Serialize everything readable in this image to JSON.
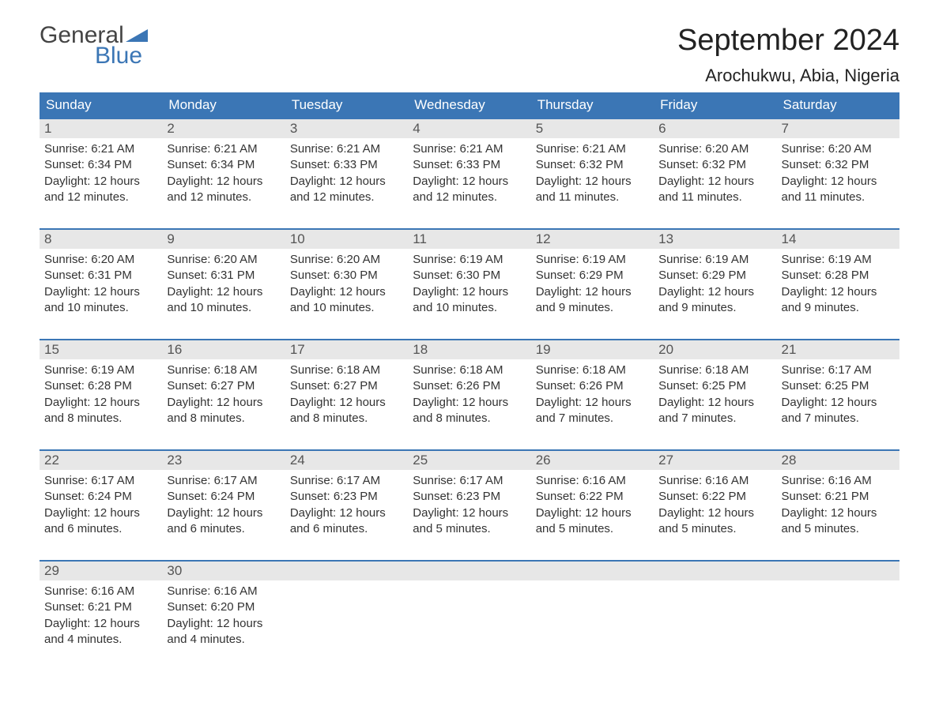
{
  "logo": {
    "top": "General",
    "bottom": "Blue"
  },
  "title": "September 2024",
  "location": "Arochukwu, Abia, Nigeria",
  "colors": {
    "header_bg": "#3b76b5",
    "header_text": "#ffffff",
    "day_number_bg": "#e7e7e7",
    "day_number_text": "#555555",
    "row_border": "#3b76b5",
    "body_text": "#333333",
    "logo_top": "#444444",
    "logo_bottom": "#3b76b5",
    "background": "#ffffff"
  },
  "weekdays": [
    "Sunday",
    "Monday",
    "Tuesday",
    "Wednesday",
    "Thursday",
    "Friday",
    "Saturday"
  ],
  "labels": {
    "sunrise": "Sunrise:",
    "sunset": "Sunset:",
    "daylight": "Daylight:"
  },
  "weeks": [
    [
      {
        "day": "1",
        "sunrise": "6:21 AM",
        "sunset": "6:34 PM",
        "daylight": "12 hours and 12 minutes."
      },
      {
        "day": "2",
        "sunrise": "6:21 AM",
        "sunset": "6:34 PM",
        "daylight": "12 hours and 12 minutes."
      },
      {
        "day": "3",
        "sunrise": "6:21 AM",
        "sunset": "6:33 PM",
        "daylight": "12 hours and 12 minutes."
      },
      {
        "day": "4",
        "sunrise": "6:21 AM",
        "sunset": "6:33 PM",
        "daylight": "12 hours and 12 minutes."
      },
      {
        "day": "5",
        "sunrise": "6:21 AM",
        "sunset": "6:32 PM",
        "daylight": "12 hours and 11 minutes."
      },
      {
        "day": "6",
        "sunrise": "6:20 AM",
        "sunset": "6:32 PM",
        "daylight": "12 hours and 11 minutes."
      },
      {
        "day": "7",
        "sunrise": "6:20 AM",
        "sunset": "6:32 PM",
        "daylight": "12 hours and 11 minutes."
      }
    ],
    [
      {
        "day": "8",
        "sunrise": "6:20 AM",
        "sunset": "6:31 PM",
        "daylight": "12 hours and 10 minutes."
      },
      {
        "day": "9",
        "sunrise": "6:20 AM",
        "sunset": "6:31 PM",
        "daylight": "12 hours and 10 minutes."
      },
      {
        "day": "10",
        "sunrise": "6:20 AM",
        "sunset": "6:30 PM",
        "daylight": "12 hours and 10 minutes."
      },
      {
        "day": "11",
        "sunrise": "6:19 AM",
        "sunset": "6:30 PM",
        "daylight": "12 hours and 10 minutes."
      },
      {
        "day": "12",
        "sunrise": "6:19 AM",
        "sunset": "6:29 PM",
        "daylight": "12 hours and 9 minutes."
      },
      {
        "day": "13",
        "sunrise": "6:19 AM",
        "sunset": "6:29 PM",
        "daylight": "12 hours and 9 minutes."
      },
      {
        "day": "14",
        "sunrise": "6:19 AM",
        "sunset": "6:28 PM",
        "daylight": "12 hours and 9 minutes."
      }
    ],
    [
      {
        "day": "15",
        "sunrise": "6:19 AM",
        "sunset": "6:28 PM",
        "daylight": "12 hours and 8 minutes."
      },
      {
        "day": "16",
        "sunrise": "6:18 AM",
        "sunset": "6:27 PM",
        "daylight": "12 hours and 8 minutes."
      },
      {
        "day": "17",
        "sunrise": "6:18 AM",
        "sunset": "6:27 PM",
        "daylight": "12 hours and 8 minutes."
      },
      {
        "day": "18",
        "sunrise": "6:18 AM",
        "sunset": "6:26 PM",
        "daylight": "12 hours and 8 minutes."
      },
      {
        "day": "19",
        "sunrise": "6:18 AM",
        "sunset": "6:26 PM",
        "daylight": "12 hours and 7 minutes."
      },
      {
        "day": "20",
        "sunrise": "6:18 AM",
        "sunset": "6:25 PM",
        "daylight": "12 hours and 7 minutes."
      },
      {
        "day": "21",
        "sunrise": "6:17 AM",
        "sunset": "6:25 PM",
        "daylight": "12 hours and 7 minutes."
      }
    ],
    [
      {
        "day": "22",
        "sunrise": "6:17 AM",
        "sunset": "6:24 PM",
        "daylight": "12 hours and 6 minutes."
      },
      {
        "day": "23",
        "sunrise": "6:17 AM",
        "sunset": "6:24 PM",
        "daylight": "12 hours and 6 minutes."
      },
      {
        "day": "24",
        "sunrise": "6:17 AM",
        "sunset": "6:23 PM",
        "daylight": "12 hours and 6 minutes."
      },
      {
        "day": "25",
        "sunrise": "6:17 AM",
        "sunset": "6:23 PM",
        "daylight": "12 hours and 5 minutes."
      },
      {
        "day": "26",
        "sunrise": "6:16 AM",
        "sunset": "6:22 PM",
        "daylight": "12 hours and 5 minutes."
      },
      {
        "day": "27",
        "sunrise": "6:16 AM",
        "sunset": "6:22 PM",
        "daylight": "12 hours and 5 minutes."
      },
      {
        "day": "28",
        "sunrise": "6:16 AM",
        "sunset": "6:21 PM",
        "daylight": "12 hours and 5 minutes."
      }
    ],
    [
      {
        "day": "29",
        "sunrise": "6:16 AM",
        "sunset": "6:21 PM",
        "daylight": "12 hours and 4 minutes."
      },
      {
        "day": "30",
        "sunrise": "6:16 AM",
        "sunset": "6:20 PM",
        "daylight": "12 hours and 4 minutes."
      },
      {
        "empty": true
      },
      {
        "empty": true
      },
      {
        "empty": true
      },
      {
        "empty": true
      },
      {
        "empty": true
      }
    ]
  ]
}
